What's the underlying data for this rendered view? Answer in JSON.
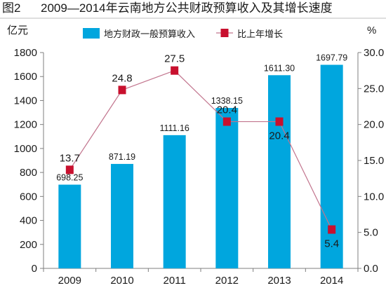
{
  "header": {
    "figure_label": "图2",
    "title": "2009—2014年云南地方公共财政预算收入及其增长速度"
  },
  "chart_data": {
    "type": "bar",
    "title": "2009—2014年云南地方公共财政预算收入及其增长速度",
    "categories": [
      "2009",
      "2010",
      "2011",
      "2012",
      "2013",
      "2014"
    ],
    "ylabel": "亿元",
    "y2label": "%",
    "ylim": [
      0,
      1800
    ],
    "y2lim": [
      0,
      30
    ],
    "yticks": [
      "0",
      "200",
      "400",
      "600",
      "800",
      "1000",
      "1200",
      "1400",
      "1600",
      "1800"
    ],
    "y2ticks": [
      "0.0",
      "5.0",
      "10.0",
      "15.0",
      "20.0",
      "25.0",
      "30.0"
    ],
    "grid": false,
    "legend": "top",
    "series": [
      {
        "name": "地方财政一般预算收入",
        "type": "bar",
        "axis": "left",
        "color": "#00a6de",
        "values": [
          698.25,
          871.19,
          1111.16,
          1338.15,
          1611.3,
          1697.79
        ],
        "labels": [
          "698.25",
          "871.19",
          "1111.16",
          "1338.15",
          "1611.30",
          "1697.79"
        ]
      },
      {
        "name": "比上年增长",
        "type": "line",
        "axis": "right",
        "color": "#c8102e",
        "line_color": "#c2758e",
        "values": [
          13.7,
          24.8,
          27.5,
          20.4,
          20.4,
          5.4
        ],
        "labels": [
          "13.7",
          "24.8",
          "27.5",
          "20.4",
          "20.4",
          "5.4"
        ]
      }
    ]
  }
}
